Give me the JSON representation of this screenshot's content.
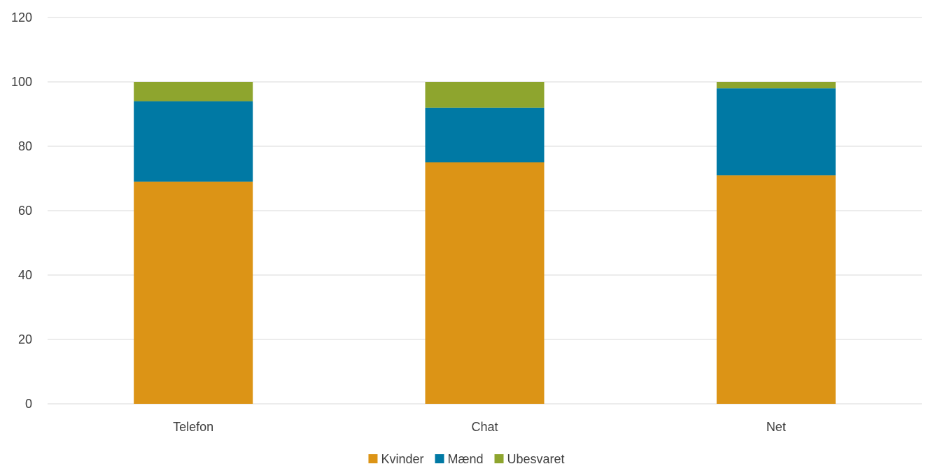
{
  "chart_data": {
    "type": "bar",
    "stacked": true,
    "categories": [
      "Telefon",
      "Chat",
      "Net"
    ],
    "series": [
      {
        "name": "Kvinder",
        "values": [
          69,
          75,
          71
        ],
        "color": "#DC9416"
      },
      {
        "name": "Mænd",
        "values": [
          25,
          17,
          27
        ],
        "color": "#0079A4"
      },
      {
        "name": "Ubesvaret",
        "values": [
          6,
          8,
          2
        ],
        "color": "#8EA52E"
      }
    ],
    "title": "",
    "xlabel": "",
    "ylabel": "",
    "ylim": [
      0,
      120
    ],
    "yticks": [
      0,
      20,
      40,
      60,
      80,
      100,
      120
    ],
    "grid": true,
    "legend": "bottom-center",
    "colors": {
      "gridline": "#D9D9D9",
      "text": "#404040"
    }
  }
}
